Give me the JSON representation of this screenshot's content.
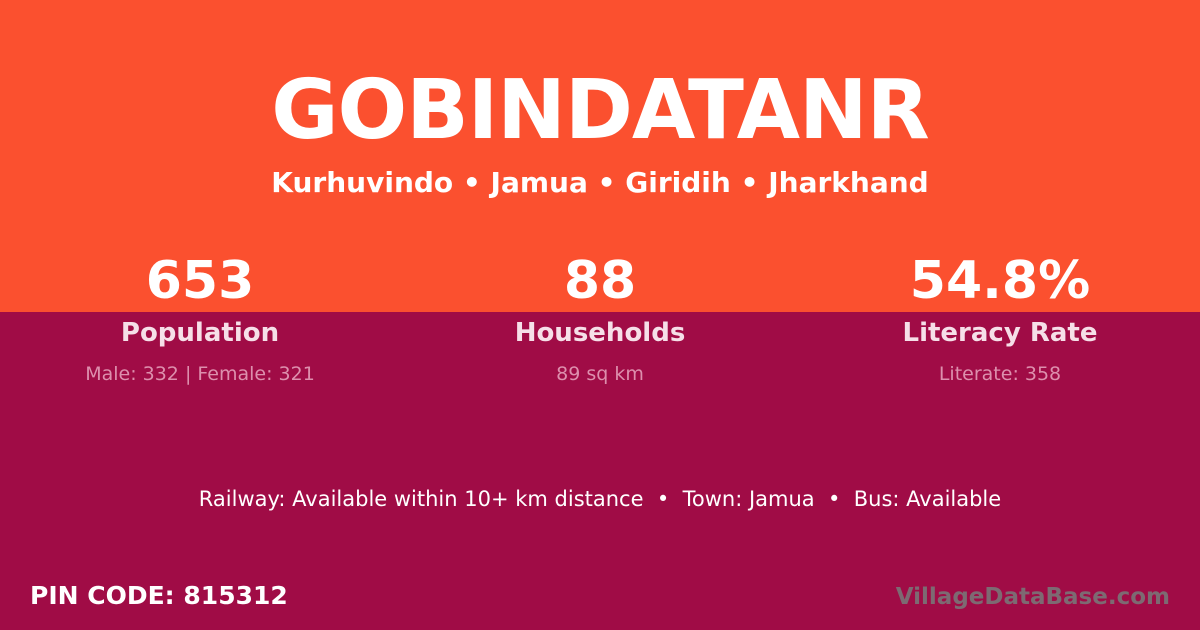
{
  "header": {
    "village_name": "GOBINDATANR",
    "breadcrumb": "Kurhuvindo • Jamua • Giridih • Jharkhand"
  },
  "stats": [
    {
      "value": "653",
      "label": "Population",
      "detail": "Male: 332 | Female: 321"
    },
    {
      "value": "88",
      "label": "Households",
      "detail": "89 sq km"
    },
    {
      "value": "54.8%",
      "label": "Literacy Rate",
      "detail": "Literate: 358"
    }
  ],
  "info_line": "Railway: Available within 10+ km distance  •  Town: Jamua  •  Bus: Available",
  "footer": {
    "pin_label": "PIN CODE:",
    "pin_value": "815312",
    "watermark": "VillageDataBase.com"
  },
  "colors": {
    "orange": "#FB502F",
    "maroon": "#A00C46",
    "white": "#FFFFFF",
    "label_pink": "#F6DFE8",
    "detail_pink": "#DD8FAD",
    "watermark_gray": "#7D6A72"
  }
}
